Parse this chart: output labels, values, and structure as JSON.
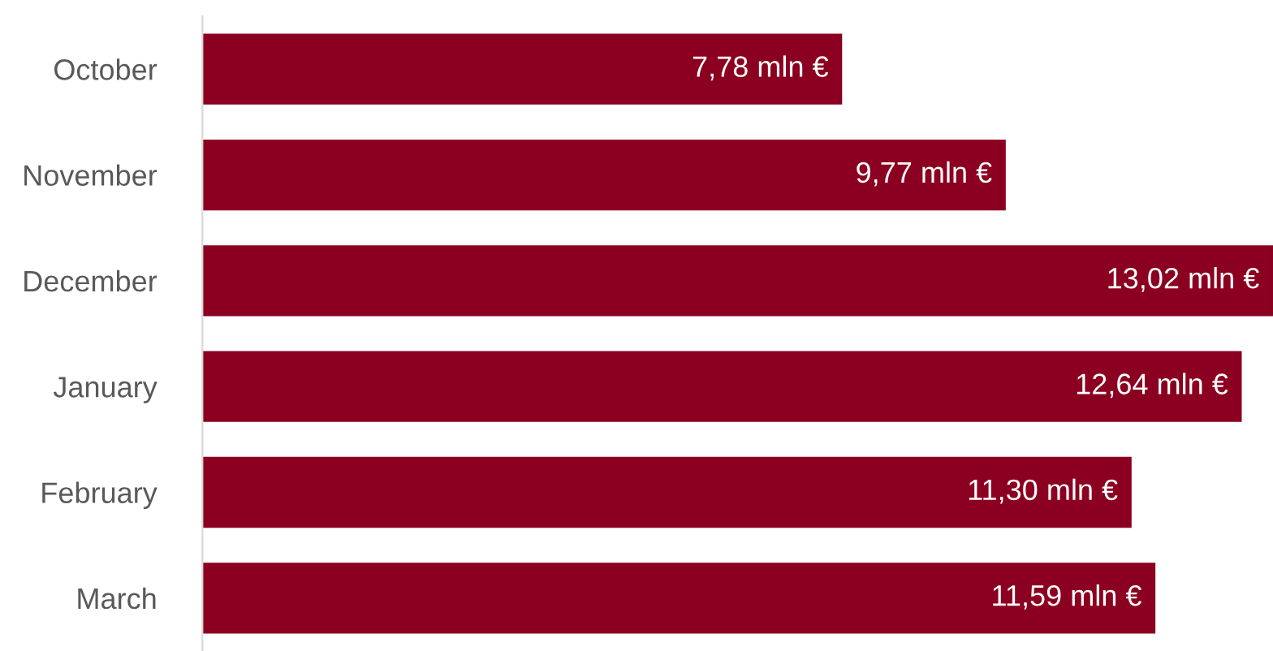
{
  "chart_data": {
    "type": "bar",
    "orientation": "horizontal",
    "categories": [
      "October",
      "November",
      "December",
      "January",
      "February",
      "March"
    ],
    "values": [
      7.78,
      9.77,
      13.02,
      12.64,
      11.3,
      11.59
    ],
    "value_labels": [
      "7,78 mln €",
      "9,77 mln €",
      "13,02 mln €",
      "12,64 mln €",
      "11,30 mln €",
      "11,59 mln €"
    ],
    "color": "#8b0020"
  }
}
